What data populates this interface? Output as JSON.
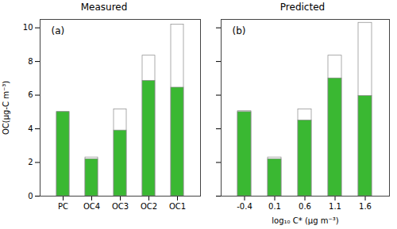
{
  "chart_data": [
    {
      "type": "bar",
      "title": "Measured",
      "annotations": [
        "(a)"
      ],
      "categories": [
        "PC",
        "OC4",
        "OC3",
        "OC2",
        "OC1"
      ],
      "series": [
        {
          "color": "#ffffff",
          "values": [
            5.0,
            2.3,
            5.15,
            8.35,
            10.2
          ]
        },
        {
          "color": "#3ab832",
          "values": [
            5.0,
            2.2,
            3.9,
            6.85,
            6.45
          ]
        }
      ],
      "ylabel": "OC(μg-C m⁻³)",
      "ylim": [
        0,
        10.5
      ],
      "yticks": [
        0,
        2,
        4,
        6,
        8,
        10
      ]
    },
    {
      "type": "bar",
      "title": "Predicted",
      "annotations": [
        "(b)"
      ],
      "categories": [
        "-0.4",
        "0.1",
        "0.6",
        "1.1",
        "1.6"
      ],
      "series": [
        {
          "color": "#ffffff",
          "values": [
            5.05,
            2.3,
            5.15,
            8.35,
            10.3
          ]
        },
        {
          "color": "#3ab832",
          "values": [
            5.0,
            2.2,
            4.5,
            7.0,
            5.95
          ]
        }
      ],
      "xlabel": "log₁₀ C* (μg m⁻³)",
      "ylim": [
        0,
        10.5
      ],
      "yticks": [
        0,
        2,
        4,
        6,
        8,
        10
      ],
      "tick_labels": "x"
    }
  ]
}
